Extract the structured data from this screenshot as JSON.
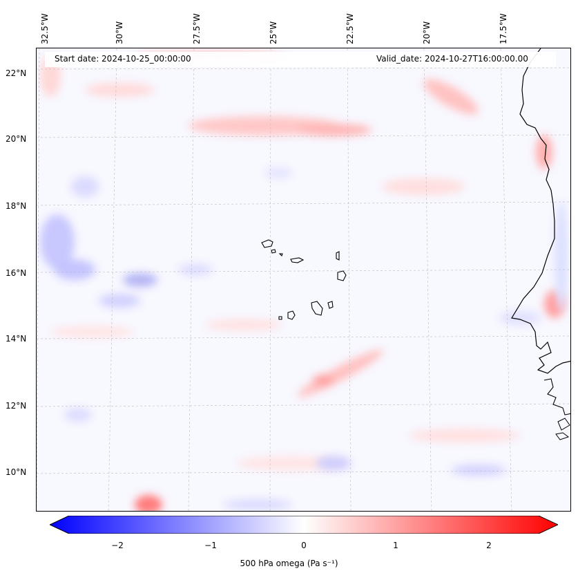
{
  "map": {
    "start_date_text": "Start date: 2024-10-25_00:00:00",
    "valid_date_text": "Valid_date: 2024-10-27T16:00:00.00",
    "longitude_labels": [
      "32.5°W",
      "30°W",
      "27.5°W",
      "25°W",
      "22.5°W",
      "20°W",
      "17.5°W"
    ],
    "latitude_labels": [
      "22°N",
      "20°N",
      "18°N",
      "16°N",
      "14°N",
      "12°N",
      "10°N"
    ],
    "field": "500 hPa omega",
    "features": [
      "Cape Verde islands",
      "West African coastline"
    ]
  },
  "colorbar": {
    "label": "500 hPa omega (Pa s⁻¹)",
    "ticks": [
      "−2",
      "−1",
      "0",
      "1",
      "2"
    ],
    "min": -2.75,
    "max": 2.75,
    "colors": {
      "negative": "#0000ff",
      "zero": "#ffffff",
      "positive": "#ff0000"
    }
  }
}
